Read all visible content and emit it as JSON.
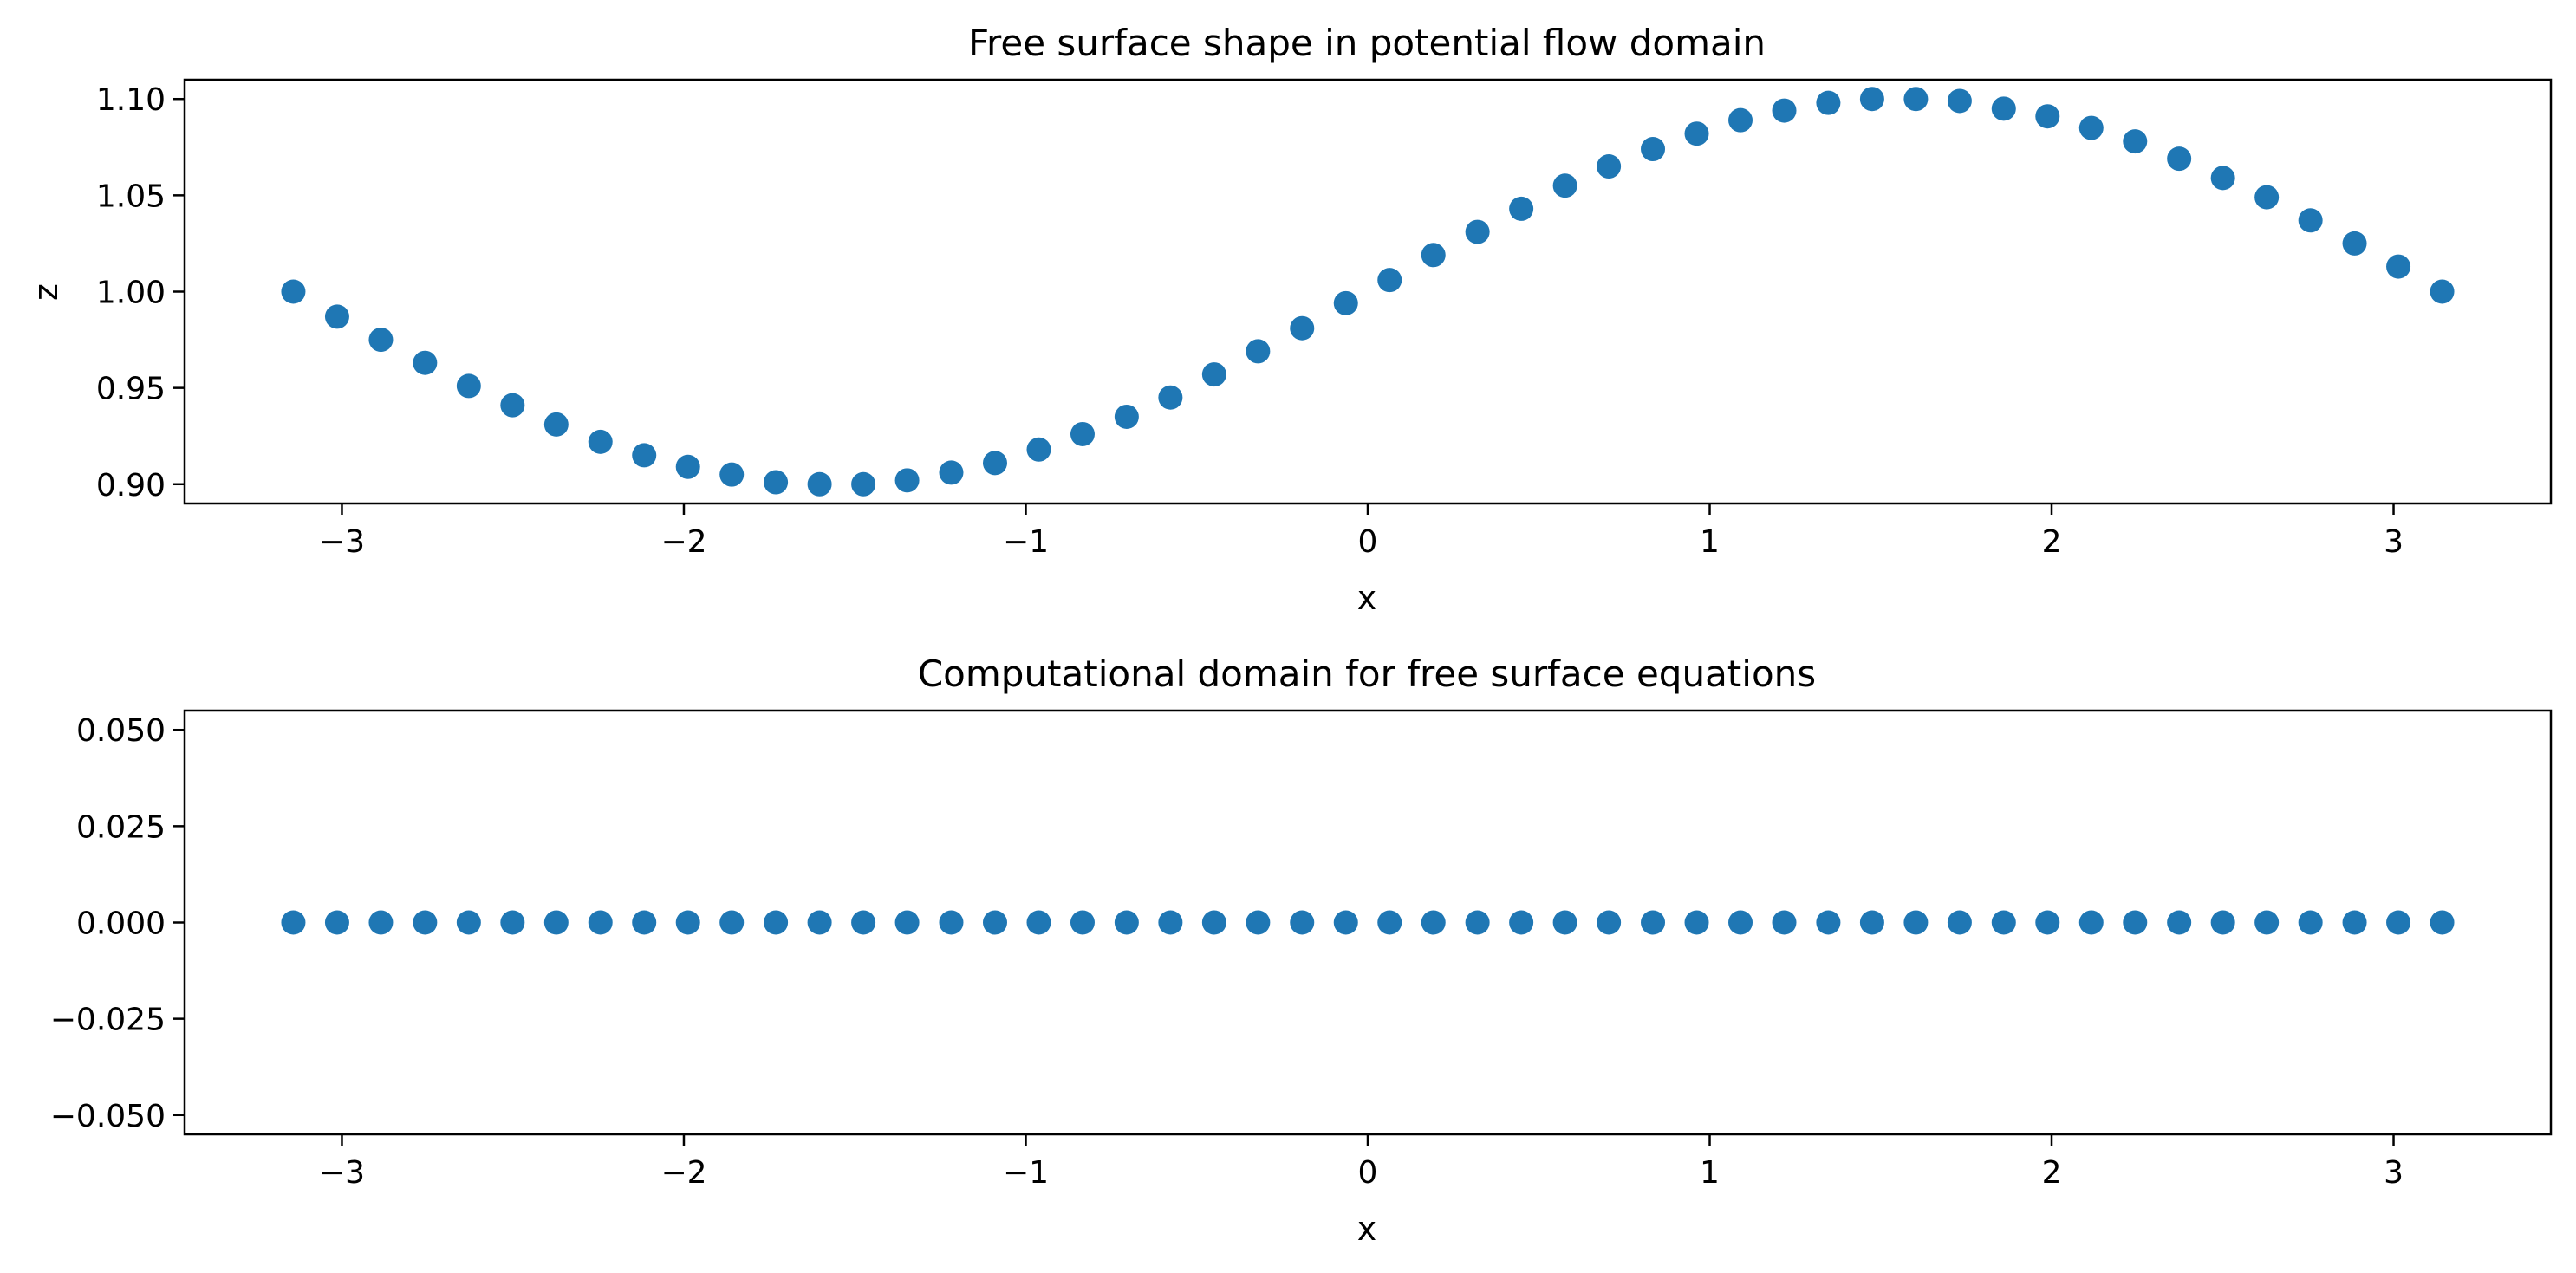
{
  "chart_data": [
    {
      "type": "scatter",
      "title": "Free surface shape in potential flow domain",
      "xlabel": "x",
      "ylabel": "z",
      "xlim": [
        -3.46,
        3.46
      ],
      "ylim": [
        0.89,
        1.11
      ],
      "xticks": [
        -3,
        -2,
        -1,
        0,
        1,
        2,
        3
      ],
      "xtick_labels": [
        "−3",
        "−2",
        "−1",
        "0",
        "1",
        "2",
        "3"
      ],
      "yticks": [
        0.9,
        0.95,
        1.0,
        1.05,
        1.1
      ],
      "ytick_labels": [
        "0.90",
        "0.95",
        "1.00",
        "1.05",
        "1.10"
      ],
      "grid": false,
      "marker_color": "#1f77b4",
      "series": [
        {
          "x": [
            -3.142,
            -3.014,
            -2.886,
            -2.757,
            -2.629,
            -2.501,
            -2.373,
            -2.244,
            -2.116,
            -1.988,
            -1.86,
            -1.731,
            -1.603,
            -1.475,
            -1.347,
            -1.218,
            -1.09,
            -0.962,
            -0.834,
            -0.705,
            -0.577,
            -0.449,
            -0.321,
            -0.192,
            -0.064,
            0.064,
            0.192,
            0.321,
            0.449,
            0.577,
            0.705,
            0.834,
            0.962,
            1.09,
            1.218,
            1.347,
            1.475,
            1.603,
            1.731,
            1.86,
            1.988,
            2.116,
            2.244,
            2.373,
            2.501,
            2.629,
            2.757,
            2.886,
            3.014,
            3.142
          ],
          "y": [
            1.0,
            0.987,
            0.975,
            0.963,
            0.951,
            0.941,
            0.931,
            0.922,
            0.915,
            0.909,
            0.905,
            0.901,
            0.9,
            0.9,
            0.902,
            0.906,
            0.911,
            0.918,
            0.926,
            0.935,
            0.945,
            0.957,
            0.969,
            0.981,
            0.994,
            1.006,
            1.019,
            1.031,
            1.043,
            1.055,
            1.065,
            1.074,
            1.082,
            1.089,
            1.094,
            1.098,
            1.1,
            1.1,
            1.099,
            1.095,
            1.091,
            1.085,
            1.078,
            1.069,
            1.059,
            1.049,
            1.037,
            1.025,
            1.013,
            1.0
          ]
        }
      ]
    },
    {
      "type": "scatter",
      "title": "Computational domain for free surface equations",
      "xlabel": "x",
      "ylabel": "",
      "xlim": [
        -3.46,
        3.46
      ],
      "ylim": [
        -0.055,
        0.055
      ],
      "xticks": [
        -3,
        -2,
        -1,
        0,
        1,
        2,
        3
      ],
      "xtick_labels": [
        "−3",
        "−2",
        "−1",
        "0",
        "1",
        "2",
        "3"
      ],
      "yticks": [
        0.05,
        0.025,
        0.0,
        -0.025,
        -0.05
      ],
      "ytick_labels": [
        "0.050",
        "0.025",
        "0.000",
        "−0.025",
        "−0.050"
      ],
      "grid": false,
      "marker_color": "#1f77b4",
      "series": [
        {
          "x": [
            -3.142,
            -3.014,
            -2.886,
            -2.757,
            -2.629,
            -2.501,
            -2.373,
            -2.244,
            -2.116,
            -1.988,
            -1.86,
            -1.731,
            -1.603,
            -1.475,
            -1.347,
            -1.218,
            -1.09,
            -0.962,
            -0.834,
            -0.705,
            -0.577,
            -0.449,
            -0.321,
            -0.192,
            -0.064,
            0.064,
            0.192,
            0.321,
            0.449,
            0.577,
            0.705,
            0.834,
            0.962,
            1.09,
            1.218,
            1.347,
            1.475,
            1.603,
            1.731,
            1.86,
            1.988,
            2.116,
            2.244,
            2.373,
            2.501,
            2.629,
            2.757,
            2.886,
            3.014,
            3.142
          ],
          "y": [
            0,
            0,
            0,
            0,
            0,
            0,
            0,
            0,
            0,
            0,
            0,
            0,
            0,
            0,
            0,
            0,
            0,
            0,
            0,
            0,
            0,
            0,
            0,
            0,
            0,
            0,
            0,
            0,
            0,
            0,
            0,
            0,
            0,
            0,
            0,
            0,
            0,
            0,
            0,
            0,
            0,
            0,
            0,
            0,
            0,
            0,
            0,
            0,
            0,
            0
          ]
        }
      ]
    }
  ]
}
